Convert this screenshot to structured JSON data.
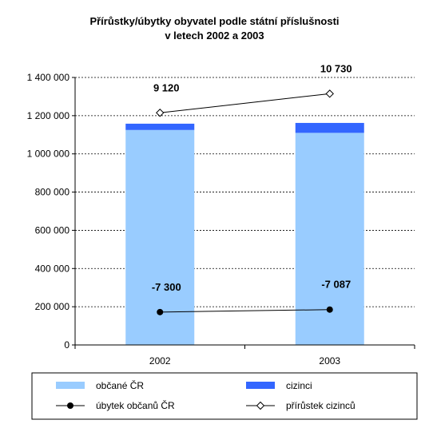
{
  "chart_data": {
    "type": "bar",
    "title": [
      "Přírůstky/úbytky obyvatel podle státní příslušnosti",
      "v letech 2002 a 2003"
    ],
    "categories": [
      "2002",
      "2003"
    ],
    "ylim": [
      0,
      1400000
    ],
    "yticks": [
      0,
      200000,
      400000,
      600000,
      800000,
      1000000,
      1200000,
      1400000
    ],
    "ytick_labels": [
      "0",
      "200 000",
      "400 000",
      "600 000",
      "800 000",
      "1 000 000",
      "1 200 000",
      "1 400 000"
    ],
    "grid": true,
    "legend_position": "bottom",
    "stacked_bars": [
      {
        "name": "občané ČR",
        "color": "#99ccff",
        "values": [
          1125000,
          1110000
        ]
      },
      {
        "name": "cizinci",
        "color": "#3366ff",
        "values": [
          33000,
          52000
        ]
      }
    ],
    "lines": [
      {
        "name": "úbytek občanů ČR",
        "marker": "filled-circle",
        "color": "#000000",
        "values": [
          172000,
          185000
        ],
        "data_labels": [
          "-7 300",
          "-7 087"
        ]
      },
      {
        "name": "přírůstek cizinců",
        "marker": "hollow-diamond",
        "color": "#000000",
        "values": [
          1215000,
          1315000
        ],
        "data_labels": [
          "9 120",
          "10 730"
        ]
      }
    ]
  }
}
